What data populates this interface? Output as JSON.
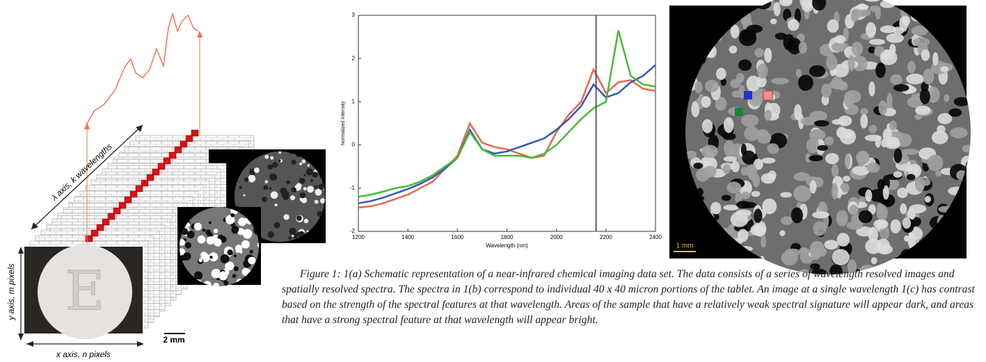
{
  "schematic": {
    "lambda_axis": "λ axis, k wavelengths",
    "y_axis": "y axis, m pixels",
    "x_axis": "x axis, n pixels",
    "scale": "2 mm",
    "tablet_letter": "E"
  },
  "chart_data": {
    "type": "line",
    "xlabel": "Wavelength (nm)",
    "ylabel": "Normalized Intensity",
    "x": [
      1200,
      1250,
      1300,
      1350,
      1400,
      1450,
      1500,
      1550,
      1600,
      1650,
      1700,
      1750,
      1800,
      1850,
      1900,
      1950,
      2000,
      2050,
      2100,
      2150,
      2200,
      2250,
      2300,
      2350,
      2400
    ],
    "series": [
      {
        "color": "#e8674a",
        "values": [
          -1.45,
          -1.42,
          -1.35,
          -1.25,
          -1.15,
          -1.0,
          -0.85,
          -0.55,
          -0.25,
          0.5,
          0.05,
          -0.05,
          -0.1,
          -0.2,
          -0.3,
          -0.25,
          0.3,
          0.7,
          1.0,
          1.75,
          1.2,
          1.45,
          1.5,
          1.3,
          1.25
        ]
      },
      {
        "color": "#3355bb",
        "values": [
          -1.35,
          -1.3,
          -1.22,
          -1.12,
          -1.02,
          -0.9,
          -0.75,
          -0.55,
          -0.3,
          0.35,
          -0.1,
          -0.2,
          -0.15,
          -0.05,
          0.05,
          0.15,
          0.35,
          0.6,
          0.9,
          1.4,
          1.1,
          1.2,
          1.45,
          1.6,
          1.85
        ]
      },
      {
        "color": "#44bb33",
        "values": [
          -1.2,
          -1.15,
          -1.08,
          -1.0,
          -0.95,
          -0.85,
          -0.7,
          -0.5,
          -0.3,
          0.3,
          -0.1,
          -0.25,
          -0.25,
          -0.25,
          -0.3,
          -0.2,
          0.0,
          0.3,
          0.6,
          0.85,
          1.0,
          2.65,
          1.6,
          1.4,
          1.35
        ]
      }
    ],
    "cursor_x": 2160,
    "xlim": [
      1200,
      2400
    ],
    "xticks": [
      1200,
      1400,
      1600,
      1800,
      2000,
      2200,
      2400
    ],
    "ylim": [
      -2,
      3
    ],
    "yticks": [
      -2,
      -1,
      0,
      1,
      2,
      3
    ]
  },
  "image_c": {
    "scale": "1 mm"
  },
  "caption": "Figure 1: 1(a) Schematic representation of a near-infrared chemical imaging data set.  The data consists of a series of wavelength resolved images and spatially resolved spectra.  The spectra in 1(b) correspond to individual 40 x 40 micron portions of the tablet.  An image at a single wavelength 1(c) has contrast based on the strength of the spectral features at that wavelength.  Areas of the sample that have a relatively weak spectral signature will appear dark, and areas that have a strong spectral feature at that wavelength will appear bright."
}
